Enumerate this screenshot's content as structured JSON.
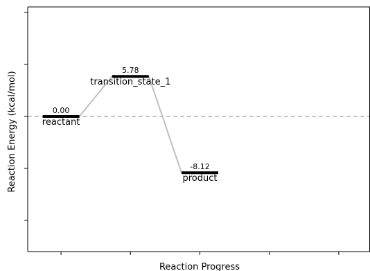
{
  "chart_data": {
    "type": "line",
    "xlabel": "Reaction Progress",
    "ylabel": "Reaction Energy (kcal/mol)",
    "x_ticks": [
      0,
      1,
      2,
      3,
      4
    ],
    "y_ticks": [
      15,
      7.5,
      0,
      -7.5,
      -15
    ],
    "x_range": [
      -0.48,
      4.45
    ],
    "y_range": [
      -19.5,
      15.8
    ],
    "show_tick_labels": false,
    "grid": false,
    "states": [
      {
        "name": "reactant",
        "x": 0,
        "energy": 0.0,
        "energy_label": "0.00"
      },
      {
        "name": "transition_state_1",
        "x": 1,
        "energy": 5.78,
        "energy_label": "5.78"
      },
      {
        "name": "product",
        "x": 2,
        "energy": -8.12,
        "energy_label": "-8.12"
      }
    ],
    "connections": [
      [
        0,
        1
      ],
      [
        1,
        2
      ]
    ],
    "reference_line": {
      "energy": 0,
      "style": "dashed",
      "color": "#b0b0b0"
    },
    "colors": {
      "level": "#000000",
      "connector": "#c0c0c0",
      "reference": "#b0b0b0",
      "axis": "#000000"
    }
  }
}
